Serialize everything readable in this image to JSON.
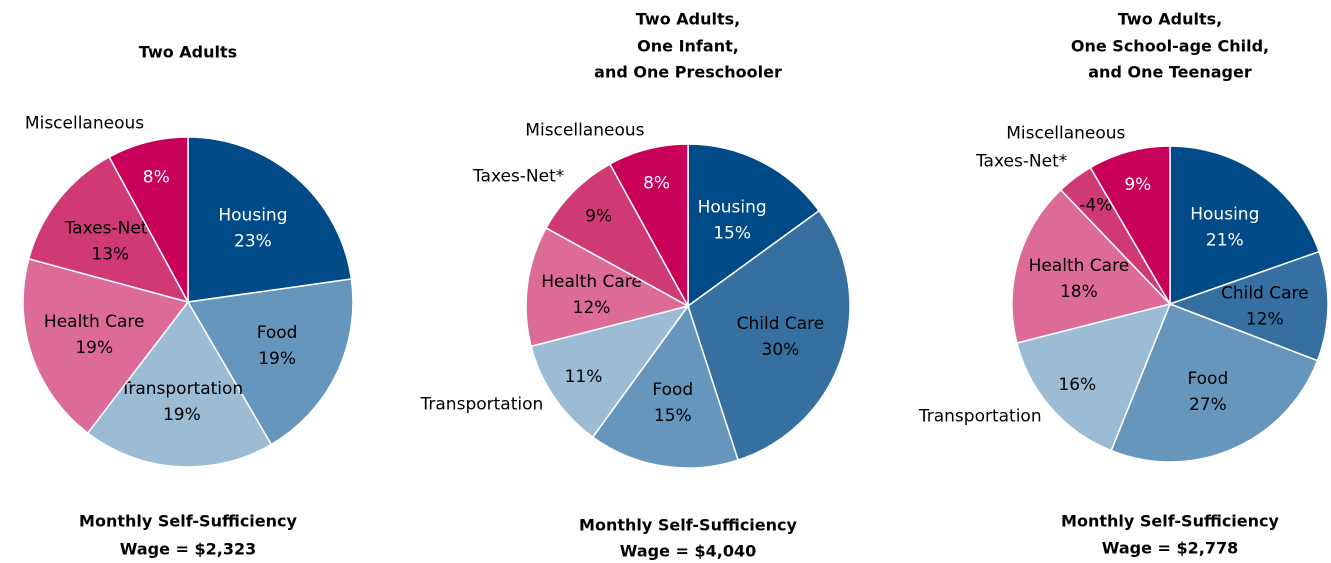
{
  "chart_data": [
    {
      "type": "pie",
      "title": [
        "Two Adults"
      ],
      "categories": [
        "Housing",
        "Food",
        "Transportation",
        "Health Care",
        "Taxes-Net*",
        "Miscellaneous"
      ],
      "values": [
        23,
        19,
        19,
        19,
        13,
        8
      ],
      "value_labels": [
        "23%",
        "19%",
        "19%",
        "19%",
        "13%",
        "8%"
      ],
      "colors": [
        "#004b87",
        "#6796bc",
        "#9bbcd4",
        "#dd6b97",
        "#d03a74",
        "#c8005a"
      ],
      "caption": [
        "Monthly Self-Sufficiency",
        "Wage = $2,323"
      ]
    },
    {
      "type": "pie",
      "title": [
        "Two Adults,",
        "One Infant,",
        "and One Preschooler"
      ],
      "categories": [
        "Housing",
        "Child Care",
        "Food",
        "Transportation",
        "Health Care",
        "Taxes-Net*",
        "Miscellaneous"
      ],
      "values": [
        15,
        30,
        15,
        11,
        12,
        9,
        8
      ],
      "value_labels": [
        "15%",
        "30%",
        "15%",
        "11%",
        "12%",
        "9%",
        "8%"
      ],
      "colors": [
        "#004b87",
        "#3670a0",
        "#6796bc",
        "#9bbcd4",
        "#dd6b97",
        "#d03a74",
        "#c8005a"
      ],
      "caption": [
        "Monthly Self-Sufficiency",
        "Wage = $4,040"
      ]
    },
    {
      "type": "pie",
      "title": [
        "Two Adults,",
        "One School-age Child,",
        "and One Teenager"
      ],
      "categories": [
        "Housing",
        "Child Care",
        "Food",
        "Transportation",
        "Health Care",
        "Taxes-Net*",
        "Miscellaneous"
      ],
      "values": [
        21,
        12,
        27,
        16,
        18,
        -4,
        9
      ],
      "value_labels": [
        "21%",
        "12%",
        "27%",
        "16%",
        "18%",
        "-4%",
        "9%"
      ],
      "colors": [
        "#004b87",
        "#3670a0",
        "#6796bc",
        "#9bbcd4",
        "#dd6b97",
        "#d03a74",
        "#c8005a"
      ],
      "caption": [
        "Monthly Self-Sufficiency",
        "Wage = $2,778"
      ]
    }
  ]
}
